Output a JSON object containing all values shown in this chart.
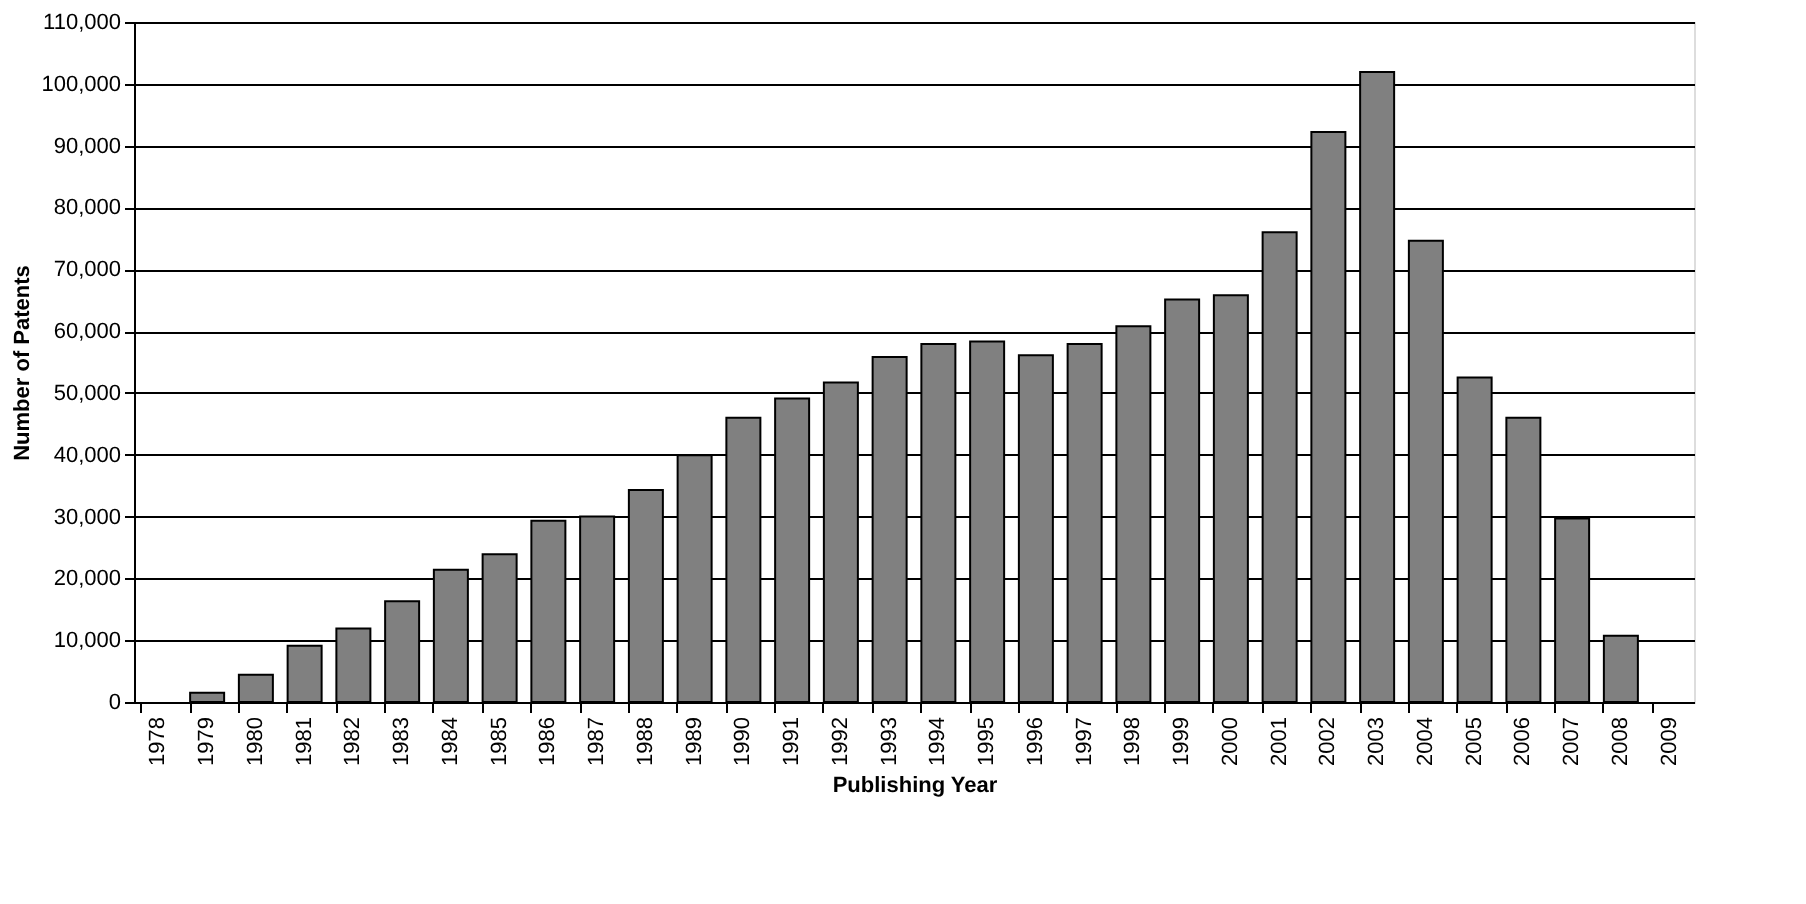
{
  "chart_data": {
    "type": "bar",
    "xlabel": "Publishing Year",
    "ylabel": "Number of Patents",
    "categories": [
      "1978",
      "1979",
      "1980",
      "1981",
      "1982",
      "1983",
      "1984",
      "1985",
      "1986",
      "1987",
      "1988",
      "1989",
      "1990",
      "1991",
      "1992",
      "1993",
      "1994",
      "1995",
      "1996",
      "1997",
      "1998",
      "1999",
      "2000",
      "2001",
      "2002",
      "2003",
      "2004",
      "2005",
      "2006",
      "2007",
      "2008",
      "2009"
    ],
    "values": [
      null,
      1500,
      4400,
      9100,
      11900,
      16300,
      21400,
      23900,
      29300,
      30000,
      34300,
      39900,
      46000,
      49100,
      51700,
      55800,
      57900,
      58300,
      56100,
      57900,
      60800,
      65100,
      65800,
      76000,
      92200,
      101900,
      74600,
      52500,
      46000,
      29700,
      10700,
      null
    ],
    "color": "#808080",
    "ylim": [
      0,
      110000
    ],
    "yticks": [
      {
        "value": 0,
        "label": "0"
      },
      {
        "value": 10000,
        "label": "10,000"
      },
      {
        "value": 20000,
        "label": "20,000"
      },
      {
        "value": 30000,
        "label": "30,000"
      },
      {
        "value": 40000,
        "label": "40,000"
      },
      {
        "value": 50000,
        "label": "50,000"
      },
      {
        "value": 60000,
        "label": "60,000"
      },
      {
        "value": 70000,
        "label": "70,000"
      },
      {
        "value": 80000,
        "label": "80,000"
      },
      {
        "value": 90000,
        "label": "90,000"
      },
      {
        "value": 100000,
        "label": "100,000"
      },
      {
        "value": 110000,
        "label": "110,000"
      }
    ],
    "grid": "y"
  }
}
